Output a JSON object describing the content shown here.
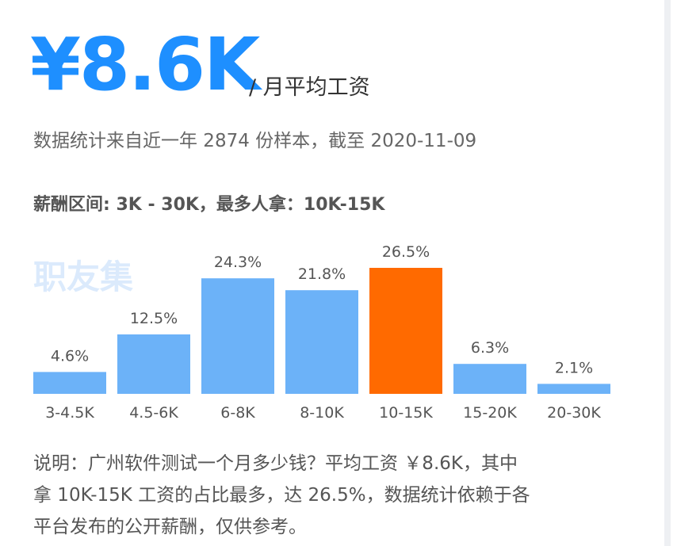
{
  "header": {
    "value": "¥8.6K",
    "unit": "/ 月平均工资",
    "subtitle": "数据统计来自近一年 2874 份样本，截至 2020-11-09",
    "range": "薪酬区间: 3K - 30K，最多人拿：10K-15K"
  },
  "watermark": "职友集",
  "chart_data": {
    "type": "bar",
    "categories": [
      "3-4.5K",
      "4.5-6K",
      "6-8K",
      "8-10K",
      "10-15K",
      "15-20K",
      "20-30K"
    ],
    "values": [
      4.6,
      12.5,
      24.3,
      21.8,
      26.5,
      6.3,
      2.1
    ],
    "value_labels": [
      "4.6%",
      "12.5%",
      "24.3%",
      "21.8%",
      "26.5%",
      "6.3%",
      "2.1%"
    ],
    "colors": [
      "#6cb2f8",
      "#6cb2f8",
      "#6cb2f8",
      "#6cb2f8",
      "#ff6a00",
      "#6cb2f8",
      "#6cb2f8"
    ]
  },
  "note": [
    "说明：广州软件测试一个月多少钱？平均工资 ￥8.6K，其中",
    "拿 10K-15K 工资的占比最多，达 26.5%，数据统计依赖于各",
    "平台发布的公开薪酬，仅供参考。"
  ]
}
